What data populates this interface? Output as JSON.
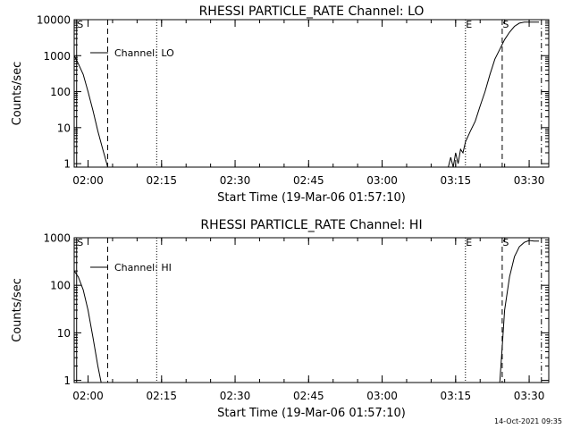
{
  "footer_timestamp": "14-Oct-2021 09:35",
  "chart_data": [
    {
      "type": "line",
      "title": "RHESSI PARTICLE_RATE Channel: LO",
      "xlabel": "Start Time (19-Mar-06 01:57:10)",
      "ylabel": "Counts/sec",
      "yscale": "log",
      "xlim": [
        "01:57:10",
        "03:34:00"
      ],
      "ylim": [
        0.8,
        10000
      ],
      "x_ticks": [
        "02:00",
        "02:15",
        "02:30",
        "02:45",
        "03:00",
        "03:15",
        "03:30"
      ],
      "y_ticks": [
        "1",
        "10",
        "100",
        "1000",
        "10000"
      ],
      "legend": "Channel: LO",
      "markers": [
        {
          "label": "S",
          "time": "01:57:40",
          "style": "solid"
        },
        {
          "label": "",
          "time": "02:04:00",
          "style": "dashed"
        },
        {
          "label": "",
          "time": "02:14:00",
          "style": "dotted"
        },
        {
          "label": "E",
          "time": "03:17:00",
          "style": "dotted"
        },
        {
          "label": "S",
          "time": "03:24:30",
          "style": "dashed"
        },
        {
          "label": "",
          "time": "03:32:30",
          "style": "dashdot"
        }
      ],
      "series": [
        {
          "name": "Channel: LO",
          "points": [
            [
              "01:57:10",
              1000
            ],
            [
              "01:58:00",
              600
            ],
            [
              "01:59:00",
              300
            ],
            [
              "02:00:00",
              100
            ],
            [
              "02:01:00",
              30
            ],
            [
              "02:02:00",
              8
            ],
            [
              "02:03:00",
              2.5
            ],
            [
              "02:03:40",
              1.2
            ],
            [
              "02:04:00",
              0.8
            ]
          ]
        },
        {
          "name": "Channel: LO",
          "points": [
            [
              "03:13:30",
              0.8
            ],
            [
              "03:14:00",
              1.5
            ],
            [
              "03:14:30",
              0.8
            ],
            [
              "03:15:00",
              2
            ],
            [
              "03:15:30",
              1
            ],
            [
              "03:16:00",
              2.5
            ],
            [
              "03:16:30",
              2
            ],
            [
              "03:17:00",
              4
            ],
            [
              "03:18:00",
              8
            ],
            [
              "03:19:00",
              15
            ],
            [
              "03:20:00",
              40
            ],
            [
              "03:21:00",
              100
            ],
            [
              "03:22:00",
              300
            ],
            [
              "03:23:00",
              800
            ],
            [
              "03:24:00",
              1500
            ],
            [
              "03:25:00",
              2800
            ],
            [
              "03:26:00",
              4500
            ],
            [
              "03:27:00",
              6500
            ],
            [
              "03:28:00",
              8000
            ],
            [
              "03:29:00",
              8500
            ],
            [
              "03:30:00",
              8500
            ],
            [
              "03:31:00",
              8500
            ],
            [
              "03:32:00",
              8500
            ]
          ]
        }
      ]
    },
    {
      "type": "line",
      "title": "RHESSI PARTICLE_RATE Channel: HI",
      "xlabel": "Start Time (19-Mar-06 01:57:10)",
      "ylabel": "Counts/sec",
      "yscale": "log",
      "xlim": [
        "01:57:10",
        "03:34:00"
      ],
      "ylim": [
        0.9,
        1000
      ],
      "x_ticks": [
        "02:00",
        "02:15",
        "02:30",
        "02:45",
        "03:00",
        "03:15",
        "03:30"
      ],
      "y_ticks": [
        "1",
        "10",
        "100",
        "1000"
      ],
      "legend": "Channel: HI",
      "markers": [
        {
          "label": "S",
          "time": "01:57:40",
          "style": "solid"
        },
        {
          "label": "",
          "time": "02:04:00",
          "style": "dashed"
        },
        {
          "label": "",
          "time": "02:14:00",
          "style": "dotted"
        },
        {
          "label": "E",
          "time": "03:17:00",
          "style": "dotted"
        },
        {
          "label": "S",
          "time": "03:24:30",
          "style": "dashed"
        },
        {
          "label": "",
          "time": "03:32:30",
          "style": "dashdot"
        }
      ],
      "series": [
        {
          "name": "Channel: HI",
          "points": [
            [
              "01:57:10",
              200
            ],
            [
              "01:58:00",
              150
            ],
            [
              "01:59:00",
              80
            ],
            [
              "02:00:00",
              30
            ],
            [
              "02:01:00",
              8
            ],
            [
              "02:02:00",
              2
            ],
            [
              "02:02:40",
              0.9
            ]
          ]
        },
        {
          "name": "Channel: HI",
          "points": [
            [
              "03:24:00",
              0.9
            ],
            [
              "03:24:30",
              5
            ],
            [
              "03:25:00",
              30
            ],
            [
              "03:26:00",
              150
            ],
            [
              "03:27:00",
              400
            ],
            [
              "03:28:00",
              650
            ],
            [
              "03:29:00",
              800
            ],
            [
              "03:30:00",
              880
            ],
            [
              "03:31:00",
              850
            ],
            [
              "03:32:00",
              850
            ]
          ]
        }
      ]
    }
  ]
}
